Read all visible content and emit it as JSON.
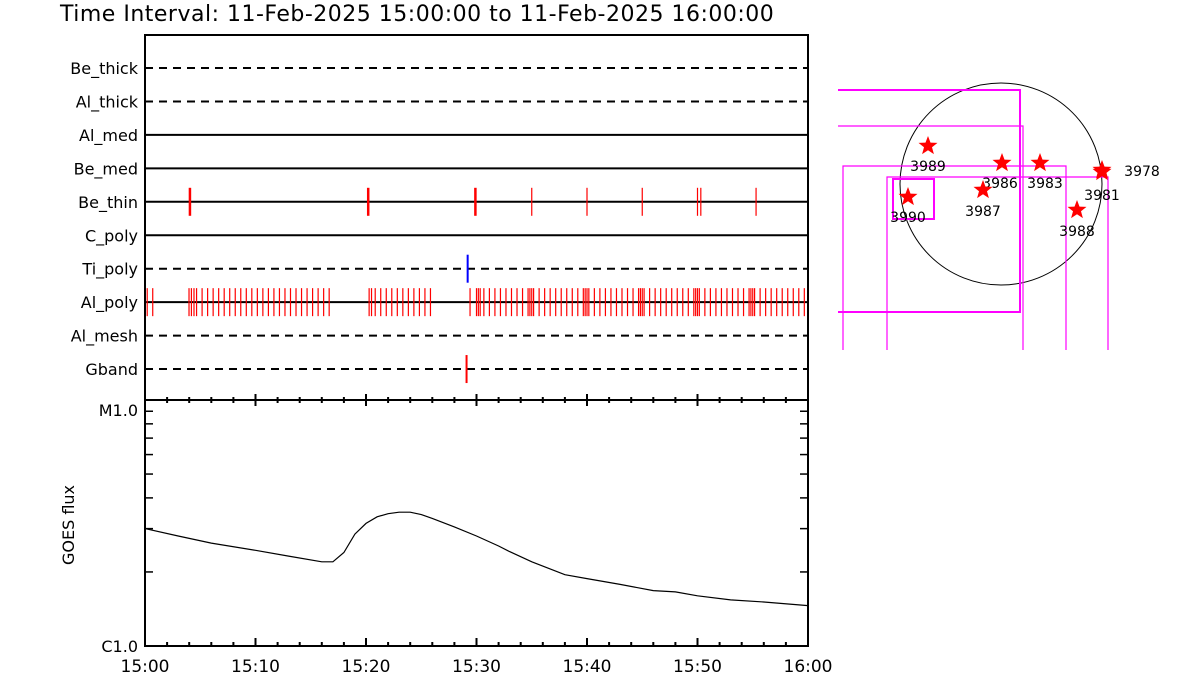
{
  "title": "Time Interval: 11-Feb-2025 15:00:00 to 11-Feb-2025 16:00:00",
  "colors": {
    "obs_red": "#ff0000",
    "obs_blue": "#0000ff",
    "fov_magenta": "#ff00ff",
    "star": "#ff0000",
    "axis": "#000000"
  },
  "chart_data": [
    {
      "type": "timeline",
      "xlim": [
        "15:00",
        "16:00"
      ],
      "x_tick_labels": [
        "15:00",
        "15:10",
        "15:20",
        "15:30",
        "15:40",
        "15:50",
        "16:00"
      ],
      "rows": [
        {
          "name": "Be_thick",
          "line": "dashed",
          "marks": []
        },
        {
          "name": "Al_thick",
          "line": "dashed",
          "marks": []
        },
        {
          "name": "Al_med",
          "line": "solid",
          "marks": []
        },
        {
          "name": "Be_med",
          "line": "solid",
          "marks": []
        },
        {
          "name": "Be_thin",
          "line": "solid",
          "color": "red",
          "marks": [
            "15:04:04",
            "15:20:12",
            "15:29:54",
            "15:35:00",
            "15:40:00",
            "15:45:00",
            "15:50:00",
            "15:50:18",
            "15:55:18"
          ]
        },
        {
          "name": "C_poly",
          "line": "solid",
          "marks": []
        },
        {
          "name": "Ti_poly",
          "line": "dashed",
          "color": "blue",
          "marks": [
            "15:29:12"
          ]
        },
        {
          "name": "Al_poly",
          "line": "solid",
          "color": "red",
          "marks": [
            "15:00:12",
            "15:00:42",
            "15:03:59",
            "15:04:12",
            "15:04:26",
            "15:04:40",
            "15:05:10",
            "15:05:40",
            "15:06:10",
            "15:06:40",
            "15:07:10",
            "15:07:40",
            "15:08:10",
            "15:08:40",
            "15:09:10",
            "15:09:40",
            "15:10:10",
            "15:10:40",
            "15:11:10",
            "15:11:40",
            "15:12:10",
            "15:12:40",
            "15:13:10",
            "15:13:40",
            "15:14:10",
            "15:14:40",
            "15:15:10",
            "15:15:40",
            "15:16:10",
            "15:16:40",
            "15:20:17",
            "15:20:30",
            "15:20:50",
            "15:21:20",
            "15:21:50",
            "15:22:20",
            "15:22:50",
            "15:23:20",
            "15:23:50",
            "15:24:20",
            "15:24:50",
            "15:25:20",
            "15:25:50",
            "15:29:25",
            "15:30:00",
            "15:30:10",
            "15:30:20",
            "15:30:40",
            "15:31:10",
            "15:31:40",
            "15:32:10",
            "15:32:40",
            "15:33:10",
            "15:33:40",
            "15:34:10",
            "15:34:40",
            "15:34:50",
            "15:35:00",
            "15:35:10",
            "15:35:40",
            "15:36:10",
            "15:36:40",
            "15:37:10",
            "15:37:40",
            "15:38:10",
            "15:38:40",
            "15:39:10",
            "15:39:40",
            "15:39:50",
            "15:40:00",
            "15:40:10",
            "15:40:40",
            "15:41:10",
            "15:41:40",
            "15:42:10",
            "15:42:40",
            "15:43:10",
            "15:43:40",
            "15:44:10",
            "15:44:40",
            "15:44:50",
            "15:45:00",
            "15:45:10",
            "15:45:40",
            "15:46:10",
            "15:46:40",
            "15:47:10",
            "15:47:40",
            "15:48:10",
            "15:48:40",
            "15:49:10",
            "15:49:40",
            "15:49:50",
            "15:50:00",
            "15:50:10",
            "15:50:40",
            "15:51:10",
            "15:51:40",
            "15:52:10",
            "15:52:40",
            "15:53:10",
            "15:53:40",
            "15:54:10",
            "15:54:40",
            "15:54:50",
            "15:55:00",
            "15:55:10",
            "15:55:40",
            "15:56:10",
            "15:56:40",
            "15:57:10",
            "15:57:40",
            "15:58:10",
            "15:58:40",
            "15:59:10",
            "15:59:40"
          ]
        },
        {
          "name": "Al_mesh",
          "line": "dashed",
          "marks": []
        },
        {
          "name": "Gband",
          "line": "dashed",
          "color": "red",
          "marks": [
            "15:29:06"
          ]
        }
      ]
    },
    {
      "type": "line",
      "ylabel": "GOES flux",
      "yscale": "log",
      "ylim": [
        1e-06,
        1e-05
      ],
      "y_tick_labels": [
        "C1.0",
        "M1.0"
      ],
      "xlim": [
        "15:00",
        "16:00"
      ],
      "x_tick_labels": [
        "15:00",
        "15:10",
        "15:20",
        "15:30",
        "15:40",
        "15:50",
        "16:00"
      ],
      "x": [
        "15:00",
        "15:03",
        "15:06",
        "15:10",
        "15:13",
        "15:16",
        "15:17",
        "15:18",
        "15:19",
        "15:20",
        "15:21",
        "15:22",
        "15:23",
        "15:24",
        "15:25",
        "15:26",
        "15:28",
        "15:30",
        "15:32",
        "15:33",
        "15:35",
        "15:38",
        "15:40",
        "15:43",
        "15:46",
        "15:48",
        "15:50",
        "15:53",
        "15:56",
        "16:00"
      ],
      "values": [
        3e-06,
        2.8e-06,
        2.62e-06,
        2.45e-06,
        2.32e-06,
        2.2e-06,
        2.2e-06,
        2.4e-06,
        2.85e-06,
        3.15e-06,
        3.35e-06,
        3.45e-06,
        3.5e-06,
        3.5e-06,
        3.42e-06,
        3.3e-06,
        3.05e-06,
        2.8e-06,
        2.55e-06,
        2.42e-06,
        2.2e-06,
        1.95e-06,
        1.88e-06,
        1.78e-06,
        1.68e-06,
        1.66e-06,
        1.6e-06,
        1.54e-06,
        1.51e-06,
        1.46e-06
      ]
    },
    {
      "type": "scatter",
      "description_labels": "active regions on solar disk",
      "regions": [
        "3989",
        "3986",
        "3983",
        "3978",
        "3981",
        "3987",
        "3990",
        "3988"
      ]
    }
  ]
}
